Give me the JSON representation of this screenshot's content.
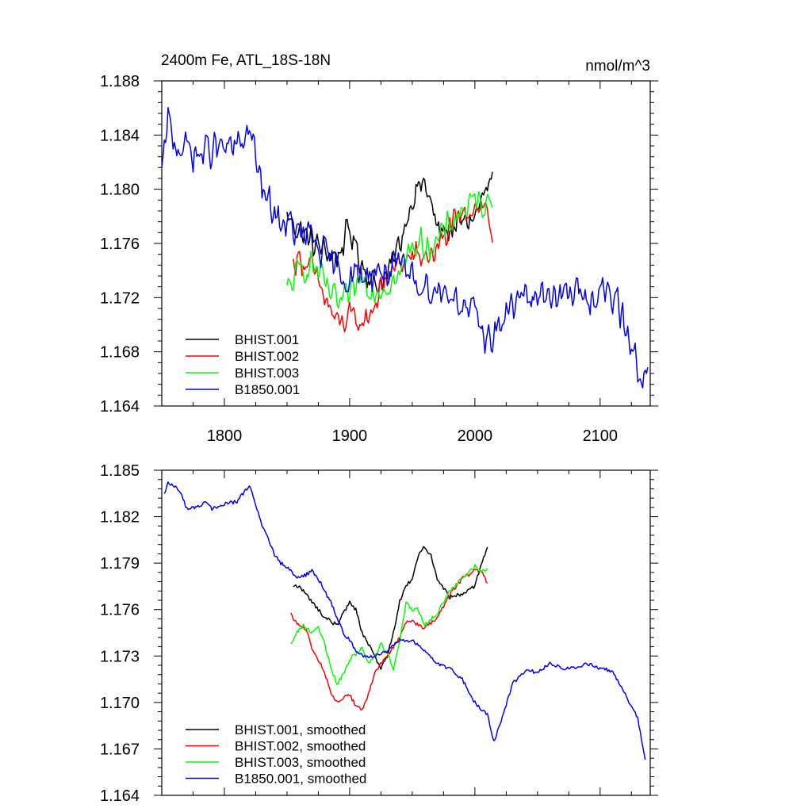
{
  "chart_data": [
    {
      "type": "line",
      "title": "2400m Fe, ATL_18S-18N",
      "units": "nmol/m^3",
      "xlim": [
        1750,
        2140
      ],
      "ylim": [
        1.164,
        1.188
      ],
      "x_ticks": [
        1800,
        1900,
        2000,
        2100
      ],
      "x_tick_labels": [
        "1800",
        "1900",
        "2000",
        "2100"
      ],
      "y_ticks": [
        1.164,
        1.168,
        1.172,
        1.176,
        1.18,
        1.184,
        1.188
      ],
      "y_tick_labels": [
        "1.164",
        "1.168",
        "1.172",
        "1.176",
        "1.180",
        "1.184",
        "1.188"
      ],
      "grid": false,
      "legend_position": "bottom-left",
      "series": [
        {
          "name": "BHIST.001",
          "color": "#000000",
          "noise": 0.0014,
          "x": [
            1850,
            1860,
            1870,
            1880,
            1890,
            1900,
            1910,
            1920,
            1930,
            1940,
            1950,
            1955,
            1960,
            1970,
            1980,
            1990,
            2000,
            2010,
            2014
          ],
          "y": [
            1.178,
            1.177,
            1.176,
            1.1755,
            1.175,
            1.177,
            1.1745,
            1.173,
            1.1735,
            1.176,
            1.1795,
            1.18,
            1.1805,
            1.177,
            1.177,
            1.1775,
            1.178,
            1.18,
            1.1805
          ]
        },
        {
          "name": "BHIST.002",
          "color": "#ff0000",
          "noise": 0.0013,
          "x": [
            1855,
            1860,
            1870,
            1880,
            1890,
            1900,
            1910,
            1920,
            1930,
            1940,
            1950,
            1960,
            1970,
            1980,
            1990,
            2000,
            2010,
            2014
          ],
          "y": [
            1.1745,
            1.175,
            1.174,
            1.172,
            1.17,
            1.1705,
            1.17,
            1.1715,
            1.1735,
            1.1745,
            1.175,
            1.175,
            1.1755,
            1.177,
            1.178,
            1.179,
            1.1785,
            1.1765
          ]
        },
        {
          "name": "BHIST.003",
          "color": "#00ff00",
          "noise": 0.0013,
          "x": [
            1850,
            1860,
            1870,
            1880,
            1890,
            1900,
            1910,
            1920,
            1930,
            1940,
            1950,
            1960,
            1970,
            1980,
            1990,
            2000,
            2010,
            2014
          ],
          "y": [
            1.1725,
            1.174,
            1.1745,
            1.173,
            1.1715,
            1.172,
            1.1735,
            1.1725,
            1.173,
            1.1735,
            1.176,
            1.176,
            1.176,
            1.1775,
            1.1785,
            1.179,
            1.179,
            1.1795
          ]
        },
        {
          "name": "B1850.001",
          "color": "#0000ff",
          "noise": 0.0016,
          "x": [
            1750,
            1755,
            1760,
            1770,
            1780,
            1790,
            1800,
            1810,
            1820,
            1830,
            1840,
            1850,
            1860,
            1870,
            1880,
            1890,
            1900,
            1910,
            1920,
            1930,
            1940,
            1950,
            1960,
            1970,
            1980,
            1990,
            2000,
            2010,
            2020,
            2030,
            2040,
            2050,
            2060,
            2070,
            2080,
            2090,
            2100,
            2110,
            2120,
            2130,
            2138
          ],
          "y": [
            1.181,
            1.185,
            1.1835,
            1.183,
            1.1825,
            1.183,
            1.183,
            1.183,
            1.1845,
            1.18,
            1.178,
            1.1775,
            1.1765,
            1.1765,
            1.175,
            1.174,
            1.1735,
            1.1735,
            1.174,
            1.174,
            1.174,
            1.1735,
            1.173,
            1.1725,
            1.1725,
            1.1715,
            1.1705,
            1.169,
            1.17,
            1.1715,
            1.172,
            1.172,
            1.1725,
            1.172,
            1.1725,
            1.172,
            1.1725,
            1.172,
            1.17,
            1.167,
            1.166
          ]
        }
      ]
    },
    {
      "type": "line",
      "xlim": [
        1750,
        2140
      ],
      "ylim": [
        1.164,
        1.185
      ],
      "x_ticks": [
        1800,
        1900,
        2000,
        2100
      ],
      "y_ticks": [
        1.164,
        1.167,
        1.17,
        1.173,
        1.176,
        1.179,
        1.182,
        1.185
      ],
      "y_tick_labels": [
        "1.164",
        "1.167",
        "1.170",
        "1.173",
        "1.176",
        "1.179",
        "1.182",
        "1.185"
      ],
      "grid": false,
      "legend_position": "bottom-left",
      "series": [
        {
          "name": "BHIST.001, smoothed",
          "color": "#000000",
          "x": [
            1855,
            1860,
            1870,
            1880,
            1890,
            1900,
            1905,
            1910,
            1920,
            1925,
            1930,
            1935,
            1940,
            1945,
            1950,
            1955,
            1960,
            1965,
            1970,
            1980,
            1990,
            2000,
            2005,
            2010
          ],
          "y": [
            1.1775,
            1.1775,
            1.1765,
            1.1755,
            1.175,
            1.1765,
            1.176,
            1.1745,
            1.173,
            1.1722,
            1.173,
            1.1745,
            1.1765,
            1.1775,
            1.178,
            1.1795,
            1.1801,
            1.1795,
            1.178,
            1.1768,
            1.177,
            1.1775,
            1.179,
            1.18
          ]
        },
        {
          "name": "BHIST.002, smoothed",
          "color": "#ff0000",
          "x": [
            1853,
            1858,
            1865,
            1870,
            1880,
            1885,
            1890,
            1900,
            1905,
            1910,
            1915,
            1920,
            1930,
            1940,
            1945,
            1950,
            1955,
            1960,
            1970,
            1980,
            1990,
            2000,
            2005,
            2010
          ],
          "y": [
            1.1758,
            1.175,
            1.1748,
            1.1735,
            1.172,
            1.1705,
            1.17,
            1.1705,
            1.1698,
            1.1696,
            1.1705,
            1.172,
            1.173,
            1.1742,
            1.1752,
            1.1752,
            1.175,
            1.1748,
            1.1755,
            1.177,
            1.178,
            1.1785,
            1.1785,
            1.1777
          ]
        },
        {
          "name": "BHIST.003, smoothed",
          "color": "#00ff00",
          "x": [
            1853,
            1858,
            1863,
            1870,
            1875,
            1880,
            1885,
            1890,
            1895,
            1900,
            1910,
            1915,
            1920,
            1925,
            1930,
            1935,
            1940,
            1945,
            1950,
            1955,
            1960,
            1970,
            1980,
            1990,
            2000,
            2005,
            2010
          ],
          "y": [
            1.1738,
            1.1745,
            1.175,
            1.1745,
            1.1748,
            1.1738,
            1.1722,
            1.1712,
            1.1718,
            1.1728,
            1.1735,
            1.1725,
            1.173,
            1.1738,
            1.1732,
            1.1722,
            1.174,
            1.1765,
            1.176,
            1.176,
            1.175,
            1.1758,
            1.1772,
            1.178,
            1.1788,
            1.1785,
            1.1786
          ]
        },
        {
          "name": "B1850.001, smoothed",
          "color": "#0000ff",
          "x": [
            1752,
            1755,
            1760,
            1765,
            1770,
            1780,
            1785,
            1790,
            1800,
            1810,
            1820,
            1830,
            1840,
            1845,
            1850,
            1855,
            1860,
            1870,
            1875,
            1880,
            1885,
            1890,
            1895,
            1900,
            1905,
            1910,
            1920,
            1930,
            1940,
            1950,
            1960,
            1970,
            1980,
            1990,
            2000,
            2005,
            2010,
            2015,
            2020,
            2030,
            2040,
            2050,
            2060,
            2070,
            2080,
            2090,
            2100,
            2110,
            2120,
            2130,
            2136
          ],
          "y": [
            1.1835,
            1.1842,
            1.184,
            1.1835,
            1.1825,
            1.1827,
            1.183,
            1.1825,
            1.1828,
            1.183,
            1.184,
            1.1815,
            1.1795,
            1.179,
            1.1787,
            1.1783,
            1.178,
            1.1785,
            1.178,
            1.1772,
            1.1765,
            1.1755,
            1.1745,
            1.174,
            1.1733,
            1.173,
            1.173,
            1.1733,
            1.174,
            1.174,
            1.1733,
            1.1725,
            1.1722,
            1.1715,
            1.17,
            1.1695,
            1.1693,
            1.1675,
            1.1685,
            1.1712,
            1.172,
            1.172,
            1.1725,
            1.1722,
            1.1722,
            1.1725,
            1.1722,
            1.172,
            1.1705,
            1.169,
            1.1662
          ]
        }
      ]
    }
  ]
}
